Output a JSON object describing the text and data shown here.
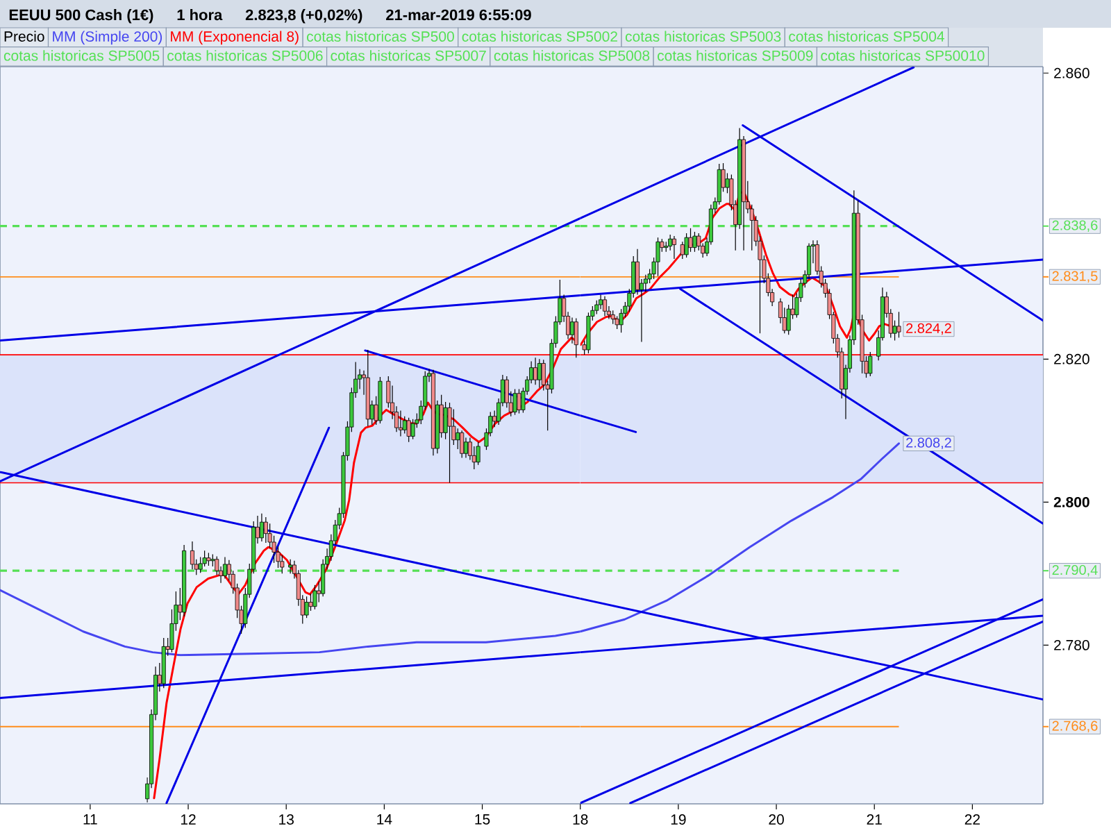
{
  "chart_data": [
    {
      "type": "candlestick",
      "title": "EEUU 500 Cash (1€)",
      "subtitle": "1 hora",
      "annotations": [
        "2.823,8 (+0,02%)",
        "21-mar-2019 6:55:09",
        "cotas historicas SP500",
        "cotas historicas SP5002",
        "cotas historicas SP5003",
        "cotas historicas SP5004",
        "cotas historicas SP5005",
        "cotas historicas SP5006",
        "cotas historicas SP5007",
        "cotas historicas SP5008",
        "cotas historicas SP5009",
        "cotas historicas SP50010"
      ],
      "legend": "top",
      "tick_labels": "x",
      "xlim": [
        10.08,
        16.0
      ],
      "ylim": [
        2757.8,
        2860.9
      ],
      "xticks": [
        11,
        12,
        13,
        14,
        15
      ],
      "bands": [
        {
          "axis": "y",
          "from": 2802.7,
          "to": 2820.6,
          "color": "#dbe3fa"
        }
      ],
      "ref_lines": [
        {
          "axis": "y",
          "value": 2838.6,
          "color": "#55e055",
          "line_style": "dashed"
        },
        {
          "axis": "y",
          "value": 2831.5,
          "color": "#ff8c1a",
          "line_style": "solid"
        },
        {
          "axis": "y",
          "value": 2820.6,
          "color": "#ff0000",
          "line_style": "solid"
        },
        {
          "axis": "y",
          "value": 2802.7,
          "color": "#ff0000",
          "line_style": "solid"
        },
        {
          "axis": "y",
          "value": 2790.4,
          "color": "#55e055",
          "line_style": "dashed"
        },
        {
          "axis": "y",
          "value": 2768.6,
          "color": "#ff8c1a",
          "line_style": "solid"
        }
      ],
      "series": [
        {
          "name": "Precio",
          "x": [
            11.583,
            11.625,
            11.667,
            11.708,
            11.75,
            11.792,
            11.833,
            11.875,
            11.917,
            11.958,
            12.042,
            12.083,
            12.125,
            12.167,
            12.208,
            12.25,
            12.292,
            12.333,
            12.375,
            12.417,
            12.458,
            12.5,
            12.542,
            12.583,
            12.625,
            12.667,
            12.708,
            12.75,
            12.792,
            12.833,
            12.875,
            12.917,
            12.958,
            13.042,
            13.083,
            13.125,
            13.167,
            13.208,
            13.25,
            13.292,
            13.333,
            13.375,
            13.417,
            13.458,
            13.5,
            13.542,
            13.583,
            13.625,
            13.667,
            13.708,
            13.75,
            13.792,
            13.833,
            13.875,
            13.917,
            13.958,
            14.042,
            14.083,
            14.125,
            14.167,
            14.208,
            14.25,
            14.292,
            14.333,
            14.375,
            14.417,
            14.458,
            14.5,
            14.542,
            14.583,
            14.625,
            14.667,
            14.708,
            14.75,
            14.792,
            14.833,
            14.875,
            14.917,
            14.958,
            15.042,
            15.083,
            15.125,
            15.167,
            15.208,
            15.25,
            15.292,
            15.333,
            15.375,
            15.417,
            15.458,
            15.5,
            15.542,
            15.583,
            15.625,
            15.667,
            15.708,
            15.75,
            15.792,
            15.833,
            15.875,
            15.917,
            15.958
          ],
          "ohlc": [
            [
              2758.5,
              2761.5,
              2758.0,
              2760.6
            ],
            [
              2760.6,
              2771.0,
              2760.0,
              2770.3
            ],
            [
              2770.3,
              2777.0,
              2769.5,
              2775.8
            ],
            [
              2775.8,
              2777.5,
              2773.5,
              2774.6
            ],
            [
              2774.6,
              2781.0,
              2774.0,
              2779.8
            ],
            [
              2779.8,
              2781.0,
              2778.5,
              2779.4
            ],
            [
              2779.4,
              2785.0,
              2779.0,
              2783.0
            ],
            [
              2783.0,
              2787.5,
              2782.0,
              2785.6
            ],
            [
              2785.6,
              2788.0,
              2783.5,
              2784.6
            ],
            [
              2784.6,
              2794.0,
              2784.0,
              2793.2
            ],
            [
              2793.2,
              2794.5,
              2790.6,
              2791.3
            ],
            [
              2791.3,
              2792.0,
              2789.8,
              2790.6
            ],
            [
              2790.6,
              2792.3,
              2790.1,
              2791.4
            ],
            [
              2791.4,
              2793.2,
              2791.0,
              2792.2
            ],
            [
              2792.2,
              2792.9,
              2791.1,
              2791.8
            ],
            [
              2791.8,
              2792.7,
              2791.0,
              2792.0
            ],
            [
              2792.0,
              2792.4,
              2789.8,
              2790.4
            ],
            [
              2790.4,
              2791.0,
              2788.7,
              2789.7
            ],
            [
              2789.7,
              2792.3,
              2789.3,
              2791.3
            ],
            [
              2791.3,
              2791.9,
              2789.0,
              2789.9
            ],
            [
              2789.9,
              2790.4,
              2787.2,
              2788.0
            ],
            [
              2788.0,
              2788.6,
              2783.8,
              2784.9
            ],
            [
              2784.9,
              2785.5,
              2781.6,
              2783.0
            ],
            [
              2783.0,
              2788.0,
              2782.4,
              2787.1
            ],
            [
              2787.1,
              2791.4,
              2786.6,
              2790.6
            ],
            [
              2790.6,
              2797.3,
              2790.0,
              2796.5
            ],
            [
              2796.5,
              2798.1,
              2794.2,
              2795.0
            ],
            [
              2795.0,
              2798.4,
              2794.5,
              2797.2
            ],
            [
              2797.2,
              2797.9,
              2794.3,
              2795.6
            ],
            [
              2795.6,
              2797.0,
              2793.6,
              2794.4
            ],
            [
              2794.4,
              2795.3,
              2791.5,
              2793.0
            ],
            [
              2793.0,
              2793.8,
              2790.8,
              2791.7
            ],
            [
              2791.7,
              2792.6,
              2790.0,
              2790.9
            ],
            [
              2790.9,
              2792.0,
              2790.0,
              2791.2
            ],
            [
              2791.2,
              2791.8,
              2789.3,
              2790.0
            ],
            [
              2790.0,
              2790.5,
              2785.5,
              2786.4
            ],
            [
              2786.4,
              2787.0,
              2783.0,
              2784.2
            ],
            [
              2784.2,
              2786.8,
              2783.8,
              2786.0
            ],
            [
              2786.0,
              2787.2,
              2784.8,
              2785.4
            ],
            [
              2785.4,
              2788.4,
              2785.0,
              2787.6
            ],
            [
              2787.6,
              2788.9,
              2786.0,
              2787.2
            ],
            [
              2787.2,
              2792.0,
              2786.8,
              2791.3
            ],
            [
              2791.3,
              2793.5,
              2790.6,
              2792.4
            ],
            [
              2792.4,
              2795.5,
              2791.8,
              2794.6
            ],
            [
              2794.6,
              2797.5,
              2794.0,
              2796.8
            ],
            [
              2796.8,
              2799.2,
              2796.2,
              2798.4
            ],
            [
              2798.4,
              2807.0,
              2797.8,
              2806.5
            ],
            [
              2806.5,
              2811.3,
              2805.8,
              2810.5
            ],
            [
              2810.5,
              2816.0,
              2809.8,
              2815.3
            ],
            [
              2815.3,
              2819.6,
              2814.6,
              2817.2
            ],
            [
              2817.2,
              2818.6,
              2815.8,
              2817.8
            ],
            [
              2817.8,
              2818.4,
              2815.0,
              2817.4
            ],
            [
              2817.4,
              2821.3,
              2810.6,
              2811.6
            ],
            [
              2811.6,
              2814.2,
              2810.8,
              2813.6
            ],
            [
              2813.6,
              2814.8,
              2810.8,
              2811.4
            ],
            [
              2811.4,
              2817.5,
              2811.0,
              2816.9
            ],
            [
              2816.9,
              2817.6,
              2813.2,
              2813.9
            ],
            [
              2813.9,
              2816.3,
              2811.6,
              2812.6
            ],
            [
              2812.6,
              2813.4,
              2809.8,
              2810.4
            ],
            [
              2810.4,
              2812.8,
              2809.2,
              2810.1
            ],
            [
              2810.1,
              2812.0,
              2809.6,
              2811.4
            ],
            [
              2811.4,
              2811.8,
              2808.4,
              2809.2
            ],
            [
              2809.2,
              2811.6,
              2808.8,
              2811.0
            ],
            [
              2811.0,
              2812.4,
              2810.4,
              2811.5
            ],
            [
              2811.5,
              2814.2,
              2810.9,
              2813.4
            ],
            [
              2813.4,
              2818.3,
              2812.9,
              2817.6
            ],
            [
              2817.6,
              2818.6,
              2816.8,
              2818.0
            ],
            [
              2818.0,
              2818.5,
              2806.5,
              2807.5
            ],
            [
              2807.5,
              2814.2,
              2806.8,
              2813.6
            ],
            [
              2813.6,
              2815.0,
              2809.0,
              2809.7
            ],
            [
              2809.7,
              2814.0,
              2808.8,
              2813.2
            ],
            [
              2813.2,
              2813.9,
              2802.7,
              2810.6
            ],
            [
              2810.6,
              2813.0,
              2808.0,
              2808.7
            ],
            [
              2808.7,
              2810.3,
              2807.4,
              2809.7
            ],
            [
              2809.7,
              2810.0,
              2806.2,
              2806.8
            ],
            [
              2806.8,
              2809.0,
              2806.2,
              2808.4
            ],
            [
              2808.4,
              2809.0,
              2805.9,
              2806.5
            ],
            [
              2806.5,
              2807.8,
              2804.6,
              2805.6
            ],
            [
              2805.6,
              2808.4,
              2805.2,
              2807.8
            ],
            [
              2807.8,
              2810.3,
              2807.3,
              2809.7
            ],
            [
              2809.7,
              2812.6,
              2809.2,
              2812.0
            ],
            [
              2812.0,
              2812.8,
              2810.5,
              2811.3
            ],
            [
              2811.3,
              2814.5,
              2810.8,
              2813.9
            ],
            [
              2813.9,
              2817.8,
              2813.4,
              2817.1
            ],
            [
              2817.1,
              2817.6,
              2813.2,
              2813.9
            ],
            [
              2813.9,
              2815.5,
              2812.0,
              2812.6
            ],
            [
              2812.6,
              2815.8,
              2812.2,
              2815.2
            ],
            [
              2815.2,
              2815.8,
              2812.4,
              2812.9
            ],
            [
              2812.9,
              2816.0,
              2812.5,
              2815.5
            ],
            [
              2815.5,
              2817.6,
              2815.0,
              2817.1
            ],
            [
              2817.1,
              2819.7,
              2816.6,
              2818.8
            ],
            [
              2818.8,
              2820.2,
              2816.4,
              2817.1
            ],
            [
              2817.1,
              2820.0,
              2816.0,
              2819.4
            ],
            [
              2819.4,
              2819.9,
              2815.6,
              2816.4
            ],
            [
              2816.4,
              2817.0,
              2810.0,
              2815.8
            ],
            [
              2815.8,
              2822.8,
              2815.2,
              2822.2
            ],
            [
              2822.2,
              2826.0,
              2821.6,
              2825.2
            ],
            [
              2825.2,
              2831.1,
              2824.8,
              2828.5
            ],
            [
              2828.5,
              2829.0,
              2825.2,
              2826.0
            ],
            [
              2826.0,
              2826.6,
              2822.8,
              2823.4
            ],
            [
              2823.4,
              2825.8,
              2822.2,
              2825.2
            ],
            [
              2825.2,
              2825.7,
              2820.2,
              2822.0
            ]
          ]
        },
        {
          "name": "MM (Simple 200)",
          "type": "line",
          "color": "#4646f0",
          "x": [
            10.08,
            10.504,
            10.929,
            11.354,
            11.637,
            11.921,
            12.629,
            13.337,
            13.833,
            14.329,
            15.037,
            15.745,
            16.0
          ],
          "values": [
            2787.7,
            2784.8,
            2781.9,
            2779.8,
            2779.0,
            2778.6,
            2778.8,
            2779.0,
            2779.8,
            2780.4,
            2780.4,
            2781.3,
            2781.9
          ]
        },
        {
          "name": "MM (Exponencial 8)",
          "type": "line",
          "color": "#ff0000",
          "x": [
            11.652,
            11.708,
            11.779,
            11.85,
            11.921,
            11.992,
            12.086,
            12.204,
            12.322,
            12.37,
            12.441,
            12.511,
            12.582,
            12.676,
            12.771,
            12.817,
            12.912,
            13.007,
            13.101,
            13.195,
            13.242,
            13.313,
            13.408,
            13.503,
            13.596,
            13.642,
            13.691,
            13.762,
            13.809,
            13.88,
            13.975,
            14.021,
            14.092,
            14.187,
            14.282,
            14.329,
            14.399,
            14.446,
            14.494,
            14.541,
            14.612,
            14.707,
            14.8,
            14.895,
            14.966,
            15.037,
            15.132,
            15.225,
            15.367,
            15.462,
            15.557,
            15.632,
            15.717,
            15.802,
            15.911,
            15.958
          ],
          "values": [
            2758.6,
            2764.1,
            2771.9,
            2777.1,
            2782.2,
            2785.8,
            2788.1,
            2789.3,
            2789.8,
            2789.8,
            2788.4,
            2787.1,
            2788.4,
            2791.3,
            2793.2,
            2793.7,
            2793.1,
            2791.9,
            2789.7,
            2787.4,
            2787.1,
            2788.4,
            2790.6,
            2793.9,
            2797.4,
            2800.3,
            2805.5,
            2809.7,
            2810.4,
            2810.7,
            2812.3,
            2812.9,
            2812.3,
            2811.6,
            2811.0,
            2811.0,
            2812.3,
            2813.9,
            2812.9,
            2812.3,
            2812.2,
            2811.6,
            2810.4,
            2809.1,
            2808.4,
            2809.1,
            2811.0,
            2812.1,
            2813.1,
            2814.0,
            2815.5,
            2816.4,
            2818.6,
            2821.4,
            2823.0,
            2822.5
          ]
        },
        {
          "type": "line",
          "color": "#0000e6",
          "x": [
            10.08,
            16.0
          ],
          "values": [
            2802.9,
            2839.7
          ]
        },
        {
          "type": "line",
          "color": "#0000e6",
          "x": [
            10.08,
            16.0
          ],
          "values": [
            2822.6,
            2828.9
          ]
        },
        {
          "type": "line",
          "color": "#0000e6",
          "x": [
            10.08,
            16.0
          ],
          "values": [
            2804.2,
            2786.5
          ]
        },
        {
          "type": "line",
          "color": "#0000e6",
          "x": [
            10.08,
            16.0
          ],
          "values": [
            2772.6,
            2779.0
          ]
        },
        {
          "type": "line",
          "color": "#0000e6",
          "x": [
            11.779,
            13.436
          ],
          "values": [
            2757.9,
            2810.4
          ]
        },
        {
          "type": "line",
          "color": "#0000e6",
          "x": [
            13.805,
            16.0
          ],
          "values": [
            2821.2,
            2812.1
          ]
        }
      ]
    },
    {
      "type": "candlestick",
      "xlim": [
        18.0,
        22.72
      ],
      "ylim": [
        2757.8,
        2860.9
      ],
      "xticks": [
        18,
        19,
        20,
        21,
        22
      ],
      "yticks": [
        {
          "value": 2860,
          "label": "2.860"
        },
        {
          "value": 2820,
          "label": "2.820"
        },
        {
          "value": 2800,
          "label": "**2.800**"
        },
        {
          "value": 2780,
          "label": "2.780"
        }
      ],
      "bands": [
        {
          "axis": "y",
          "from": 2802.7,
          "to": 2820.6,
          "color": "#dbe3fa"
        }
      ],
      "ref_lines": [
        {
          "axis": "y",
          "value": 2838.6,
          "label": "2.838,6",
          "color": "#55e055",
          "line_style": "dashed"
        },
        {
          "axis": "y",
          "value": 2831.5,
          "label": "2.831,5",
          "color": "#ff8c1a",
          "line_style": "solid"
        },
        {
          "axis": "y",
          "value": 2820.6,
          "color": "#ff0000",
          "line_style": "solid"
        },
        {
          "axis": "y",
          "value": 2802.7,
          "color": "#ff0000",
          "line_style": "solid"
        },
        {
          "axis": "y",
          "value": 2790.4,
          "label": "2.790,4",
          "color": "#55e055",
          "line_style": "dashed"
        },
        {
          "axis": "y",
          "value": 2768.6,
          "label": "2.768,6",
          "color": "#ff8c1a",
          "line_style": "solid"
        }
      ],
      "series": [
        {
          "x": [
            18.042,
            18.083,
            18.125,
            18.167,
            18.208,
            18.25,
            18.292,
            18.333,
            18.375,
            18.417,
            18.458,
            18.5,
            18.542,
            18.583,
            18.625,
            18.667,
            18.708,
            18.75,
            18.792,
            18.833,
            18.875,
            18.917,
            18.958,
            19.042,
            19.083,
            19.125,
            19.167,
            19.208,
            19.25,
            19.292,
            19.333,
            19.375,
            19.417,
            19.458,
            19.5,
            19.542,
            19.583,
            19.625,
            19.667,
            19.708,
            19.75,
            19.792,
            19.833,
            19.875,
            19.917,
            19.958,
            20.042,
            20.083,
            20.125,
            20.167,
            20.208,
            20.25,
            20.292,
            20.333,
            20.375,
            20.417,
            20.458,
            20.5,
            20.542,
            20.583,
            20.625,
            20.667,
            20.708,
            20.75,
            20.792,
            20.833,
            20.875,
            20.917,
            20.958,
            21.042,
            21.083,
            21.125,
            21.167,
            21.208,
            21.25
          ],
          "ohlc": [
            [
              2822.0,
              2822.6,
              2820.6,
              2821.3
            ],
            [
              2821.3,
              2826.5,
              2820.8,
              2826.0
            ],
            [
              2826.0,
              2827.4,
              2825.4,
              2826.8
            ],
            [
              2826.8,
              2828.2,
              2826.3,
              2827.6
            ],
            [
              2827.6,
              2829.0,
              2827.0,
              2828.3
            ],
            [
              2828.3,
              2828.8,
              2826.0,
              2826.7
            ],
            [
              2826.7,
              2827.4,
              2825.6,
              2826.2
            ],
            [
              2826.2,
              2826.8,
              2824.9,
              2825.6
            ],
            [
              2825.6,
              2826.0,
              2824.2,
              2824.8
            ],
            [
              2824.8,
              2827.0,
              2823.7,
              2826.4
            ],
            [
              2826.4,
              2828.0,
              2825.8,
              2827.4
            ],
            [
              2827.4,
              2829.8,
              2826.6,
              2829.2
            ],
            [
              2829.2,
              2834.4,
              2828.6,
              2833.6
            ],
            [
              2833.6,
              2835.4,
              2829.0,
              2829.7
            ],
            [
              2829.7,
              2831.2,
              2822.4,
              2830.6
            ],
            [
              2830.6,
              2831.8,
              2829.4,
              2831.2
            ],
            [
              2831.2,
              2832.6,
              2830.6,
              2831.9
            ],
            [
              2831.9,
              2834.2,
              2831.2,
              2833.6
            ],
            [
              2833.6,
              2837.0,
              2831.6,
              2836.4
            ],
            [
              2836.4,
              2836.8,
              2835.0,
              2835.6
            ],
            [
              2835.6,
              2836.4,
              2835.0,
              2835.8
            ],
            [
              2835.8,
              2837.4,
              2835.2,
              2836.8
            ],
            [
              2836.8,
              2837.2,
              2834.0,
              2836.0
            ],
            [
              2836.0,
              2836.4,
              2834.0,
              2834.6
            ],
            [
              2834.6,
              2837.6,
              2834.2,
              2837.0
            ],
            [
              2837.0,
              2838.3,
              2835.0,
              2835.6
            ],
            [
              2835.6,
              2837.8,
              2835.0,
              2837.2
            ],
            [
              2837.2,
              2837.6,
              2835.2,
              2835.8
            ],
            [
              2835.8,
              2836.2,
              2834.2,
              2834.8
            ],
            [
              2834.8,
              2837.0,
              2834.4,
              2836.4
            ],
            [
              2836.4,
              2841.6,
              2836.0,
              2841.0
            ],
            [
              2841.0,
              2842.6,
              2840.4,
              2842.0
            ],
            [
              2842.0,
              2847.3,
              2841.6,
              2846.5
            ],
            [
              2846.5,
              2847.4,
              2843.4,
              2844.0
            ],
            [
              2844.0,
              2846.0,
              2843.2,
              2845.2
            ],
            [
              2845.2,
              2845.8,
              2840.8,
              2841.6
            ],
            [
              2841.6,
              2842.2,
              2835.2,
              2838.8
            ],
            [
              2838.8,
              2852.3,
              2838.2,
              2850.7
            ],
            [
              2850.7,
              2851.2,
              2835.2,
              2842.0
            ],
            [
              2842.0,
              2844.9,
              2840.4,
              2841.0
            ],
            [
              2841.0,
              2841.6,
              2835.2,
              2839.4
            ],
            [
              2839.4,
              2840.0,
              2835.8,
              2836.5
            ],
            [
              2836.5,
              2837.2,
              2823.6,
              2833.9
            ],
            [
              2833.9,
              2834.5,
              2830.6,
              2831.3
            ],
            [
              2831.3,
              2832.0,
              2828.8,
              2829.3
            ],
            [
              2829.3,
              2829.8,
              2827.4,
              2828.0
            ],
            [
              2828.0,
              2828.5,
              2825.0,
              2825.8
            ],
            [
              2825.8,
              2827.2,
              2823.6,
              2824.0
            ],
            [
              2824.0,
              2827.6,
              2823.4,
              2827.0
            ],
            [
              2827.0,
              2829.0,
              2825.6,
              2826.2
            ],
            [
              2826.2,
              2829.2,
              2825.8,
              2828.6
            ],
            [
              2828.6,
              2831.2,
              2828.0,
              2830.6
            ],
            [
              2830.6,
              2832.4,
              2830.0,
              2831.8
            ],
            [
              2831.8,
              2836.2,
              2831.2,
              2835.8
            ],
            [
              2835.8,
              2836.6,
              2833.4,
              2836.0
            ],
            [
              2836.0,
              2836.6,
              2831.8,
              2832.3
            ],
            [
              2832.3,
              2833.0,
              2830.0,
              2830.6
            ],
            [
              2830.6,
              2831.2,
              2828.6,
              2829.2
            ],
            [
              2829.2,
              2829.8,
              2825.6,
              2826.2
            ],
            [
              2826.2,
              2826.6,
              2822.2,
              2822.9
            ],
            [
              2822.9,
              2823.5,
              2820.2,
              2821.0
            ],
            [
              2821.0,
              2821.6,
              2814.5,
              2815.8
            ],
            [
              2815.8,
              2819.2,
              2811.6,
              2818.7
            ],
            [
              2818.7,
              2823.3,
              2818.1,
              2822.7
            ],
            [
              2822.7,
              2843.6,
              2822.0,
              2840.4
            ],
            [
              2840.4,
              2842.2,
              2824.8,
              2825.5
            ],
            [
              2825.5,
              2826.2,
              2818.0,
              2819.7
            ],
            [
              2819.7,
              2820.4,
              2817.4,
              2818.0
            ],
            [
              2818.0,
              2821.0,
              2817.6,
              2820.4
            ],
            [
              2820.4,
              2824.0,
              2819.8,
              2823.0
            ],
            [
              2823.0,
              2830.0,
              2822.6,
              2828.7
            ],
            [
              2828.7,
              2829.4,
              2825.8,
              2826.4
            ],
            [
              2826.4,
              2827.0,
              2823.0,
              2823.6
            ],
            [
              2823.6,
              2825.4,
              2822.6,
              2824.6
            ],
            [
              2824.6,
              2826.6,
              2823.0,
              2823.8
            ]
          ]
        },
        {
          "type": "line",
          "color": "#4646f0",
          "x": [
            18.0,
            18.453,
            18.878,
            19.303,
            19.728,
            20.153,
            20.578,
            20.861,
            21.074,
            21.25
          ],
          "values": [
            2781.9,
            2783.6,
            2786.2,
            2789.7,
            2793.7,
            2797.4,
            2800.7,
            2803.2,
            2806.0,
            2808.2
          ],
          "value_labels": [
            null,
            null,
            null,
            null,
            null,
            null,
            null,
            null,
            null,
            "2.808,2"
          ]
        },
        {
          "type": "line",
          "color": "#ff0000",
          "x": [
            18.004,
            18.075,
            18.17,
            18.265,
            18.312,
            18.358,
            18.406,
            18.477,
            18.571,
            18.642,
            18.712,
            18.807,
            18.902,
            19.02,
            19.115,
            19.208,
            19.279,
            19.35,
            19.421,
            19.492,
            19.516,
            19.551,
            19.586,
            19.61,
            19.633,
            19.657,
            19.681,
            19.752,
            19.823,
            19.894,
            19.965,
            20.035,
            20.129,
            20.177,
            20.224,
            20.295,
            20.365,
            20.436,
            20.507,
            20.578,
            20.649,
            20.72,
            20.758,
            20.79,
            20.837,
            20.885,
            20.946,
            21.003,
            21.05,
            21.106,
            21.168,
            21.25
          ],
          "values": [
            2822.0,
            2823.6,
            2825.2,
            2825.9,
            2826.0,
            2825.6,
            2825.2,
            2826.2,
            2828.5,
            2829.1,
            2829.8,
            2831.4,
            2832.7,
            2834.6,
            2835.9,
            2836.2,
            2836.9,
            2839.8,
            2841.1,
            2841.7,
            2841.7,
            2841.2,
            2840.7,
            2842.4,
            2843.3,
            2843.3,
            2843.0,
            2840.7,
            2837.8,
            2834.6,
            2832.0,
            2830.1,
            2829.1,
            2828.8,
            2829.8,
            2830.7,
            2831.4,
            2830.8,
            2830.1,
            2827.5,
            2824.6,
            2823.0,
            2824.2,
            2826.2,
            2825.5,
            2823.9,
            2822.6,
            2823.6,
            2824.6,
            2824.9,
            2824.6,
            2824.2
          ],
          "value_labels": [
            null,
            null,
            null,
            null,
            null,
            null,
            null,
            null,
            null,
            null,
            null,
            null,
            null,
            null,
            null,
            null,
            null,
            null,
            null,
            null,
            null,
            null,
            null,
            null,
            null,
            null,
            null,
            null,
            null,
            null,
            null,
            null,
            null,
            null,
            null,
            null,
            null,
            null,
            null,
            null,
            null,
            null,
            null,
            null,
            null,
            null,
            null,
            null,
            null,
            null,
            null,
            "2.824,2"
          ]
        },
        {
          "type": "line",
          "color": "#0000e6",
          "x": [
            18.0,
            21.4
          ],
          "values": [
            2839.7,
            2860.8
          ]
        },
        {
          "type": "line",
          "color": "#0000e6",
          "x": [
            18.0,
            22.72
          ],
          "values": [
            2828.9,
            2833.9
          ]
        },
        {
          "type": "line",
          "color": "#0000e6",
          "x": [
            18.0,
            22.72
          ],
          "values": [
            2786.5,
            2772.4
          ]
        },
        {
          "type": "line",
          "color": "#0000e6",
          "x": [
            18.0,
            22.72
          ],
          "values": [
            2779.0,
            2784.1
          ]
        },
        {
          "type": "line",
          "color": "#0000e6",
          "x": [
            19.657,
            22.72
          ],
          "values": [
            2852.7,
            2825.4
          ]
        },
        {
          "type": "line",
          "color": "#0000e6",
          "x": [
            19.02,
            22.72
          ],
          "values": [
            2829.8,
            2797.0
          ]
        },
        {
          "type": "line",
          "color": "#0000e6",
          "x": [
            18.0,
            22.72
          ],
          "values": [
            2757.9,
            2786.4
          ]
        },
        {
          "type": "line",
          "color": "#0000e6",
          "x": [
            18.51,
            22.72
          ],
          "values": [
            2757.9,
            2783.3
          ]
        },
        {
          "type": "line",
          "color": "#0000e6",
          "x": [
            18.0,
            18.567
          ],
          "values": [
            2812.1,
            2809.8
          ]
        }
      ]
    }
  ]
}
